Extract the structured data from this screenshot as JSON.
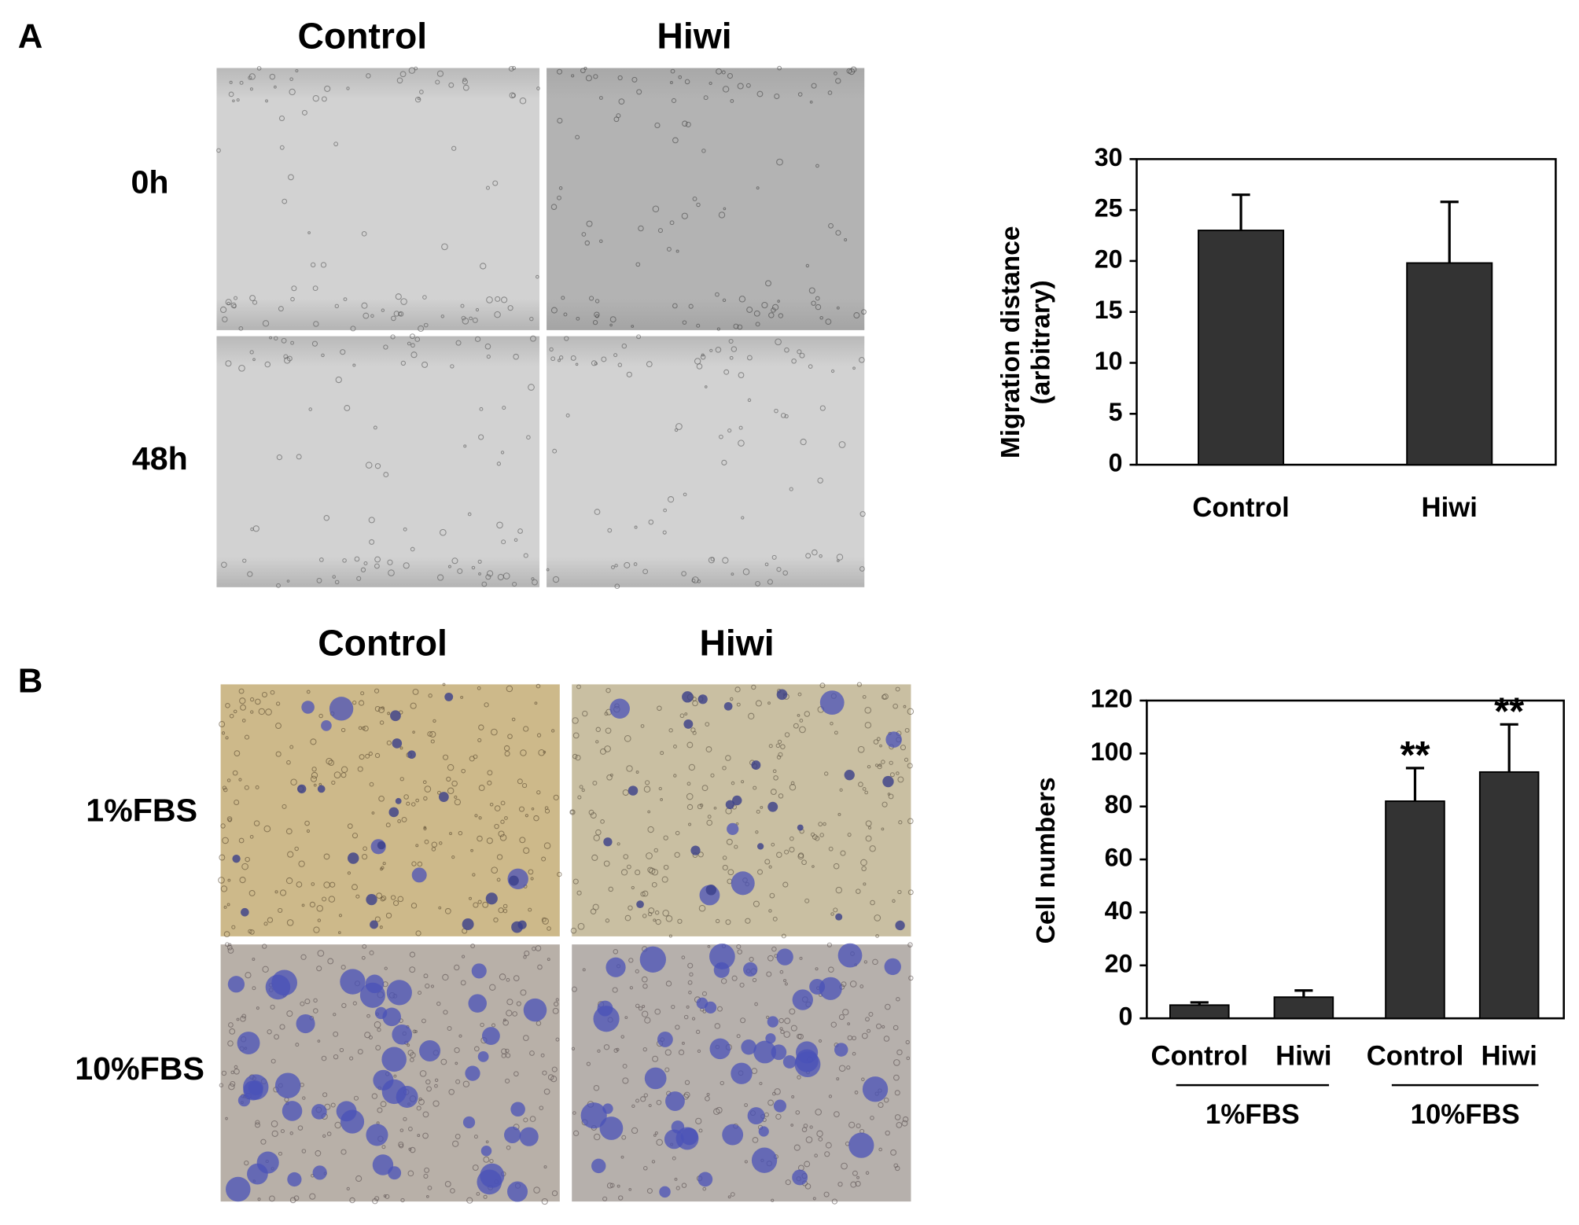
{
  "panels": [
    {
      "label": "A",
      "columns": [
        "Control",
        "Hiwi"
      ],
      "rows": [
        "0h",
        "48h"
      ]
    },
    {
      "label": "B",
      "columns": [
        "Control",
        "Hiwi"
      ],
      "rows": [
        "1%FBS",
        "10%FBS"
      ]
    }
  ],
  "chart_data": [
    {
      "type": "bar",
      "ylabel": [
        "Migration distance",
        "(arbitrary)"
      ],
      "categories": [
        "Control",
        "Hiwi"
      ],
      "values": [
        23,
        19.8
      ],
      "errors": [
        3.5,
        6
      ],
      "color": "#333333",
      "ylim": [
        0,
        30
      ],
      "yticks": [
        0,
        5,
        10,
        15,
        20,
        25,
        30
      ]
    },
    {
      "type": "bar",
      "ylabel": [
        "Cell numbers"
      ],
      "categories": [
        "Control",
        "Hiwi",
        "Control",
        "Hiwi"
      ],
      "values": [
        5,
        8,
        82,
        93
      ],
      "errors": [
        1,
        2.5,
        12.5,
        18
      ],
      "annotations": [
        null,
        null,
        "**",
        "**"
      ],
      "groups": [
        "1%FBS",
        "10%FBS"
      ],
      "color": "#333333",
      "ylim": [
        0,
        120
      ],
      "yticks": [
        0,
        20,
        40,
        60,
        80,
        100,
        120
      ]
    }
  ]
}
